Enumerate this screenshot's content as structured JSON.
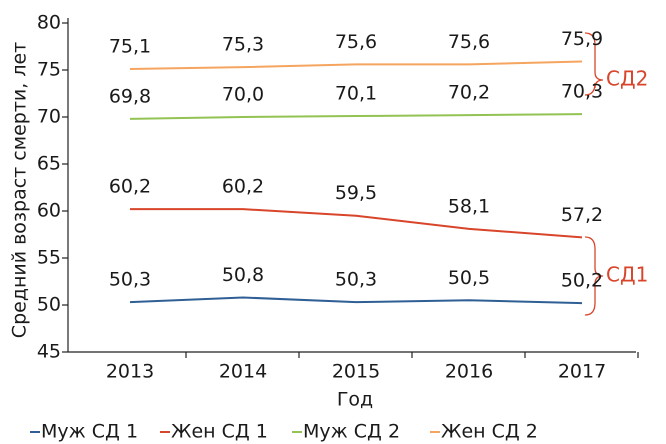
{
  "chart_data": {
    "type": "line",
    "x_label": "Год",
    "y_label": "Средний возраст смерти, лет",
    "categories": [
      "2013",
      "2014",
      "2015",
      "2016",
      "2017"
    ],
    "series": [
      {
        "name": "Муж СД 1",
        "color": "#2f5f95",
        "values": [
          50.3,
          50.8,
          50.3,
          50.5,
          50.2
        ],
        "value_labels": [
          "50,3",
          "50,8",
          "50,3",
          "50,5",
          "50,2"
        ]
      },
      {
        "name": "Жен СД 1",
        "color": "#d8452a",
        "values": [
          60.2,
          60.2,
          59.5,
          58.1,
          57.2
        ],
        "value_labels": [
          "60,2",
          "60,2",
          "59,5",
          "58,1",
          "57,2"
        ]
      },
      {
        "name": "Муж СД 2",
        "color": "#92c353",
        "values": [
          69.8,
          70.0,
          70.1,
          70.2,
          70.3
        ],
        "value_labels": [
          "69,8",
          "70,0",
          "70,1",
          "70,2",
          "70,3"
        ]
      },
      {
        "name": "Жен СД 2",
        "color": "#f5a55f",
        "values": [
          75.1,
          75.3,
          75.6,
          75.6,
          75.9
        ],
        "value_labels": [
          "75,1",
          "75,3",
          "75,6",
          "75,6",
          "75,9"
        ]
      }
    ],
    "annotations": [
      "СД2",
      "СД1"
    ],
    "ylim": [
      45,
      80
    ],
    "yticks": [
      45,
      50,
      55,
      60,
      65,
      70,
      75,
      80
    ],
    "legend": "bottom"
  }
}
